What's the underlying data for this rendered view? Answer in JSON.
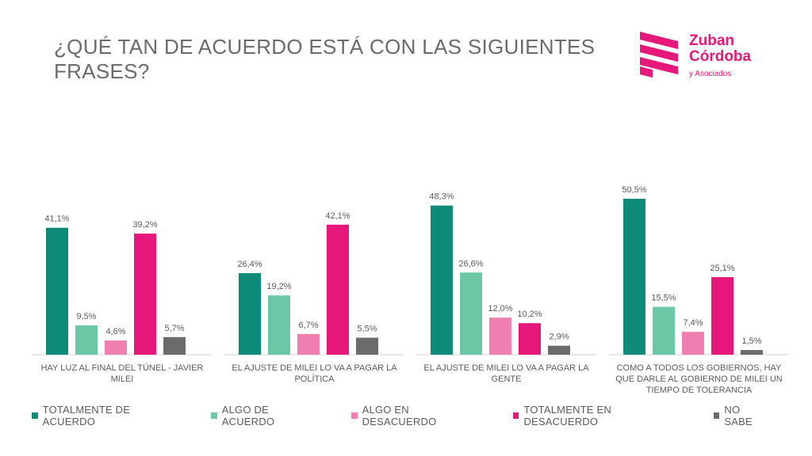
{
  "header": {
    "title_line1": "¿QUÉ TAN DE ACUERDO ESTÁ CON LAS SIGUIENTES",
    "title_line2": "FRASES?"
  },
  "logo": {
    "name_line1": "Zuban",
    "name_line2": "Córdoba",
    "sub": "y Asociados",
    "color": "#e5197a"
  },
  "chart_data": {
    "type": "bar",
    "categories": [
      [
        "HAY LUZ AL FINAL DEL TÚNEL - JAVIER",
        "MILEI"
      ],
      [
        "EL AJUSTE DE MILEI LO VA A PAGAR LA",
        "POLÍTICA"
      ],
      [
        "EL AJUSTE DE MILEI LO VA A PAGAR LA",
        "GENTE"
      ],
      [
        "COMO A TODOS LOS GOBIERNOS, HAY",
        "QUE DARLE AL GOBIERNO DE MILEI UN",
        "TIEMPO DE TOLERANCIA"
      ]
    ],
    "series": [
      {
        "name": "TOTALMENTE DE ACUERDO",
        "color": "#0e8a78",
        "values": [
          41.1,
          26.4,
          48.3,
          50.5
        ],
        "labels": [
          "41,1%",
          "26,4%",
          "48,3%",
          "50,5%"
        ]
      },
      {
        "name": "ALGO DE ACUERDO",
        "color": "#6cc8a4",
        "values": [
          9.5,
          19.2,
          26.6,
          15.5
        ],
        "labels": [
          "9,5%",
          "19,2%",
          "26,6%",
          "15,5%"
        ]
      },
      {
        "name": "ALGO EN DESACUERDO",
        "color": "#ef7fb0",
        "values": [
          4.6,
          6.7,
          12.0,
          7.4
        ],
        "labels": [
          "4,6%",
          "6,7%",
          "12,0%",
          "7,4%"
        ]
      },
      {
        "name": "TOTALMENTE EN DESACUERDO",
        "color": "#e6167a",
        "values": [
          39.2,
          42.1,
          10.2,
          25.1
        ],
        "labels": [
          "39,2%",
          "42,1%",
          "10,2%",
          "25,1%"
        ]
      },
      {
        "name": "NO SABE",
        "color": "#6b6b6b",
        "values": [
          5.7,
          5.5,
          2.9,
          1.5
        ],
        "labels": [
          "5,7%",
          "5,5%",
          "2,9%",
          "1,5%"
        ]
      }
    ],
    "ylim": [
      0,
      55
    ],
    "legend_position": "bottom"
  }
}
